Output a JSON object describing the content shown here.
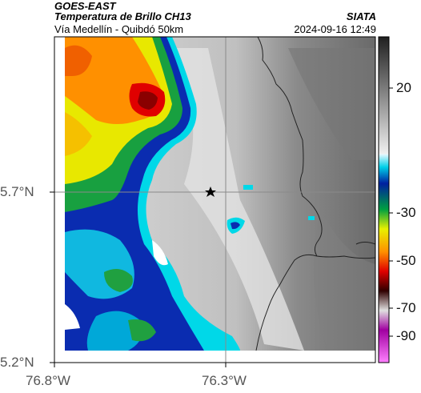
{
  "header": {
    "source": "GOES-EAST",
    "product": "Temperatura de Brillo CH13",
    "subtitle": "Vía Medellín - Quibdó 50km",
    "agency": "SIATA",
    "timestamp": "2024-09-16 12:49"
  },
  "axes": {
    "lat_labels": [
      "5.7°N",
      "5.2°N"
    ],
    "lon_labels": [
      "76.8°W",
      "76.3°W"
    ]
  },
  "colorbar": {
    "labels": [
      "20",
      "-30",
      "-50",
      "-70",
      "-90"
    ]
  },
  "colors": {
    "cold_core": "#c00000",
    "warm_land": "#b0b0b0",
    "cyan": "#00d8e8",
    "blue": "#0020a0"
  }
}
